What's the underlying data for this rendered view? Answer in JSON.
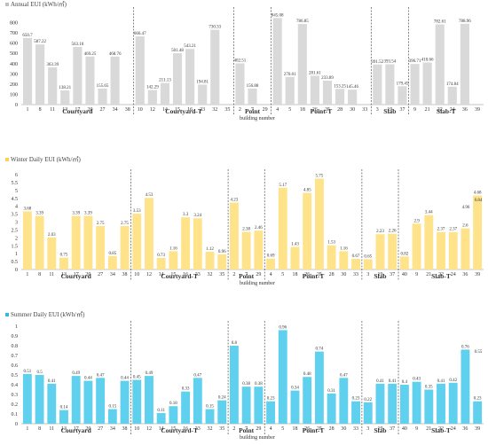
{
  "chart_data": [
    {
      "type": "bar",
      "title": "Annual EUI (kWh/㎡)",
      "xlabel": "building number",
      "color": "#d9d9d9",
      "title_dot_color": "#bfbfbf",
      "ylim": [
        0,
        900
      ],
      "yticks": [
        0,
        100,
        200,
        300,
        400,
        500,
        600,
        700,
        800
      ],
      "groups": [
        {
          "name": "Courtyard",
          "categories": [
            "1",
            "8",
            "11",
            "13",
            "17",
            "20",
            "27",
            "34",
            "38"
          ],
          "values": [
            650.7,
            587.22,
            363.39,
            138.21,
            563.1,
            469.25,
            155.65,
            468.76,
            null
          ],
          "labels": [
            "650.7",
            "587.22",
            "363.39",
            "138.21",
            "563.10",
            "469.25",
            "155.65",
            "468.76",
            ""
          ]
        },
        {
          "name": "Courtyard-T",
          "categories": [
            "10",
            "12",
            "14",
            "15",
            "16",
            "23",
            "32",
            "35"
          ],
          "values": [
            666.47,
            142.29,
            211.13,
            501.48,
            543.21,
            194.81,
            730.33,
            null
          ],
          "labels": [
            "666.47",
            "142.29",
            "211.13",
            "501.48",
            "543.21",
            "194.81",
            "730.33",
            ""
          ]
        },
        {
          "name": "Point",
          "categories": [
            "2",
            "7",
            "29"
          ],
          "values": [
            402.51,
            156.88,
            null
          ],
          "labels": [
            "402.51",
            "156.88",
            ""
          ]
        },
        {
          "name": "Point-T",
          "categories": [
            "4",
            "5",
            "18",
            "26",
            "25",
            "28",
            "30",
            "33"
          ],
          "values": [
            845.08,
            270.01,
            786.85,
            281.61,
            233.89,
            153.25,
            145.46,
            null
          ],
          "labels": [
            "845.08",
            "270.01",
            "786.85",
            "281.61",
            "233.89",
            "153.25",
            "145.46",
            ""
          ]
        },
        {
          "name": "Slab",
          "categories": [
            "3",
            "19",
            "37"
          ],
          "values": [
            391.52,
            393.54,
            179.45
          ],
          "labels": [
            "391.52",
            "393.54",
            "179.45"
          ]
        },
        {
          "name": "Slab-T",
          "categories": [
            "9",
            "21",
            "22",
            "24",
            "36",
            "39"
          ],
          "values": [
            396.71,
            410.66,
            782.61,
            174.84,
            788.96,
            null
          ],
          "labels": [
            "396.71",
            "410.66",
            "782.61",
            "174.84",
            "788.96",
            ""
          ]
        }
      ]
    },
    {
      "type": "bar",
      "title": "Winter Daily EUI (kWh/㎡)",
      "xlabel": "building number",
      "color": "#ffe38a",
      "title_dot_color": "#ffd24d",
      "ylim": [
        0,
        6
      ],
      "yticks": [
        0,
        0.5,
        1,
        1.5,
        2,
        2.5,
        3,
        3.5,
        4,
        4.5,
        5,
        5.5,
        6
      ],
      "groups": [
        {
          "name": "Courtyard",
          "categories": [
            "1",
            "8",
            "11",
            "13",
            "17",
            "20",
            "27",
            "34",
            "38"
          ],
          "values": [
            3.68,
            3.39,
            2.03,
            0.75,
            3.39,
            3.39,
            2.75,
            0.85,
            2.75
          ],
          "labels": [
            "3.68",
            "3.39",
            "2.03",
            "0.75",
            "3.39",
            "3.39",
            "2.75",
            "0.85",
            "2.75"
          ]
        },
        {
          "name": "Courtyard-T",
          "categories": [
            "10",
            "12",
            "14",
            "15",
            "16",
            "23",
            "32",
            "35"
          ],
          "values": [
            3.53,
            4.53,
            0.73,
            1.16,
            3.3,
            3.24,
            1.12,
            0.96
          ],
          "labels": [
            "3.53",
            "4.53",
            "0.73",
            "1.16",
            "3.3",
            "3.24",
            "1.12",
            "0.96"
          ]
        },
        {
          "name": "Point",
          "categories": [
            "2",
            "7",
            "29"
          ],
          "values": [
            4.23,
            2.38,
            2.46
          ],
          "labels": [
            "4.23",
            "2.38",
            "2.46"
          ]
        },
        {
          "name": "Point-T",
          "categories": [
            "4",
            "5",
            "18",
            "26",
            "25",
            "28",
            "30",
            "33"
          ],
          "values": [
            0.69,
            5.17,
            1.43,
            4.85,
            5.75,
            1.53,
            1.16,
            0.67
          ],
          "labels": [
            "0.69",
            "5.17",
            "1.43",
            "4.85",
            "5.75",
            "1.53",
            "1.16",
            "0.67"
          ]
        },
        {
          "name": "Slab",
          "categories": [
            "3",
            "19",
            "37"
          ],
          "values": [
            0.65,
            2.23,
            2.26
          ],
          "labels": [
            "0.65",
            "2.23",
            "2.26"
          ]
        },
        {
          "name": "Slab-T",
          "categories": [
            "40",
            "9",
            "21",
            "22",
            "24",
            "36",
            "39"
          ],
          "values": [
            0.82,
            2.9,
            3.44,
            2.37,
            2.37,
            2.6,
            4.68
          ],
          "labels": [
            "0.82",
            "2.9",
            "3.44",
            "2.37",
            "2.37",
            "2.6",
            "4.68"
          ]
        },
        {
          "name": "",
          "categories": [],
          "values": [],
          "labels": []
        }
      ],
      "extra_labels": [
        "0.84",
        "4.96"
      ]
    },
    {
      "type": "bar",
      "title": "Summer Daily EUI (kWh/㎡)",
      "xlabel": "building number",
      "color": "#5fd0ee",
      "title_dot_color": "#2bbde6",
      "ylim": [
        0,
        1
      ],
      "yticks": [
        0,
        0.1,
        0.2,
        0.3,
        0.4,
        0.5,
        0.6,
        0.7,
        0.8,
        0.9,
        1
      ],
      "groups": [
        {
          "name": "Courtyard",
          "categories": [
            "1",
            "8",
            "11",
            "13",
            "17",
            "20",
            "27",
            "34",
            "38"
          ],
          "values": [
            0.51,
            0.5,
            0.41,
            0.14,
            0.49,
            0.44,
            0.47,
            0.15,
            0.44
          ],
          "labels": [
            "0.51",
            "0.5",
            "0.41",
            "0.14",
            "0.49",
            "0.44",
            "0.47",
            "0.15",
            "0.44"
          ]
        },
        {
          "name": "Courtyard-T",
          "categories": [
            "10",
            "12",
            "14",
            "15",
            "16",
            "23",
            "32",
            "35"
          ],
          "values": [
            0.45,
            0.49,
            0.11,
            0.18,
            0.33,
            0.47,
            0.15,
            0.24
          ],
          "labels": [
            "0.45",
            "0.49",
            "0.11",
            "0.18",
            "0.33",
            "0.47",
            "0.15",
            "0.24"
          ]
        },
        {
          "name": "Point",
          "categories": [
            "2",
            "7",
            "29"
          ],
          "values": [
            0.8,
            0.38,
            0.38
          ],
          "labels": [
            "0.8",
            "0.38",
            "0.38"
          ]
        },
        {
          "name": "Point-T",
          "categories": [
            "4",
            "5",
            "18",
            "26",
            "25",
            "28",
            "30",
            "33"
          ],
          "values": [
            0.23,
            0.96,
            0.34,
            0.48,
            0.74,
            0.31,
            0.47,
            0.23
          ],
          "labels": [
            "0.23",
            "0.96",
            "0.34",
            "0.48",
            "0.74",
            "0.31",
            "0.47",
            "0.23"
          ]
        },
        {
          "name": "Slab",
          "categories": [
            "3",
            "19",
            "37"
          ],
          "values": [
            0.22,
            0.41,
            0.41
          ],
          "labels": [
            "0.22",
            "0.41",
            "0.41"
          ]
        },
        {
          "name": "Slab-T",
          "categories": [
            "40",
            "9",
            "21",
            "22",
            "24",
            "36",
            "39"
          ],
          "values": [
            0.4,
            0.43,
            0.35,
            0.41,
            0.42,
            0.76,
            0.23
          ],
          "labels": [
            "0.4",
            "0.43",
            "0.35",
            "0.41",
            "0.42",
            "0.76",
            "0.23"
          ]
        }
      ],
      "extra_labels": [
        "0.55"
      ]
    }
  ]
}
